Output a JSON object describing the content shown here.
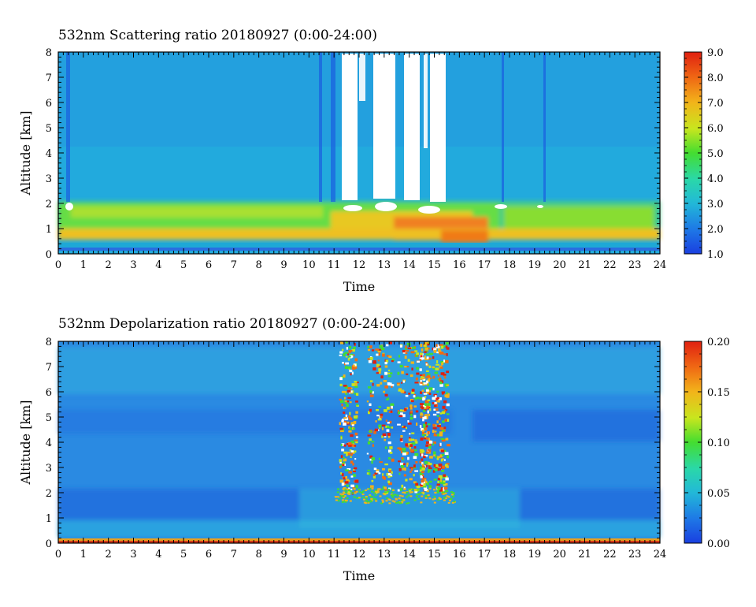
{
  "chart_data": [
    {
      "type": "heatmap",
      "title": "532nm Scattering ratio  20180927 (0:00-24:00)",
      "xlabel": "Time",
      "ylabel": "Altitude [km]",
      "xlim": [
        0,
        24
      ],
      "ylim": [
        0,
        8
      ],
      "x_ticks": [
        "0",
        "1",
        "2",
        "3",
        "4",
        "5",
        "6",
        "7",
        "8",
        "9",
        "10",
        "11",
        "12",
        "13",
        "14",
        "15",
        "16",
        "17",
        "18",
        "19",
        "20",
        "21",
        "22",
        "23",
        "24"
      ],
      "y_ticks": [
        "0",
        "1",
        "2",
        "3",
        "4",
        "5",
        "6",
        "7",
        "8"
      ],
      "colorbar": {
        "min": 1.0,
        "max": 9.0,
        "ticks": [
          "1.0",
          "2.0",
          "3.0",
          "4.0",
          "5.0",
          "6.0",
          "7.0",
          "8.0",
          "9.0"
        ]
      },
      "background_value": 2.8,
      "cloud_layer_km": [
        1.6,
        2.2
      ],
      "lower_layer_km": [
        0.4,
        1.0
      ],
      "saturated_columns_hours": [
        [
          11.2,
          11.8
        ],
        [
          12.5,
          13.3
        ],
        [
          14.0,
          14.2
        ],
        [
          14.8,
          15.5
        ]
      ]
    },
    {
      "type": "heatmap",
      "title": "532nm Depolarization ratio  20180927 (0:00-24:00)",
      "xlabel": "Time",
      "ylabel": "Altitude [km]",
      "xlim": [
        0,
        24
      ],
      "ylim": [
        0,
        8
      ],
      "x_ticks": [
        "0",
        "1",
        "2",
        "3",
        "4",
        "5",
        "6",
        "7",
        "8",
        "9",
        "10",
        "11",
        "12",
        "13",
        "14",
        "15",
        "16",
        "17",
        "18",
        "19",
        "20",
        "21",
        "22",
        "23",
        "24"
      ],
      "y_ticks": [
        "0",
        "1",
        "2",
        "3",
        "4",
        "5",
        "6",
        "7",
        "8"
      ],
      "colorbar": {
        "min": 0.0,
        "max": 0.2,
        "ticks": [
          "0.00",
          "0.05",
          "0.10",
          "0.15",
          "0.20"
        ]
      },
      "background_value": 0.03,
      "ice_cloud_hours": [
        11.2,
        15.5
      ],
      "ice_cloud_km": [
        2.0,
        8.0
      ]
    }
  ]
}
